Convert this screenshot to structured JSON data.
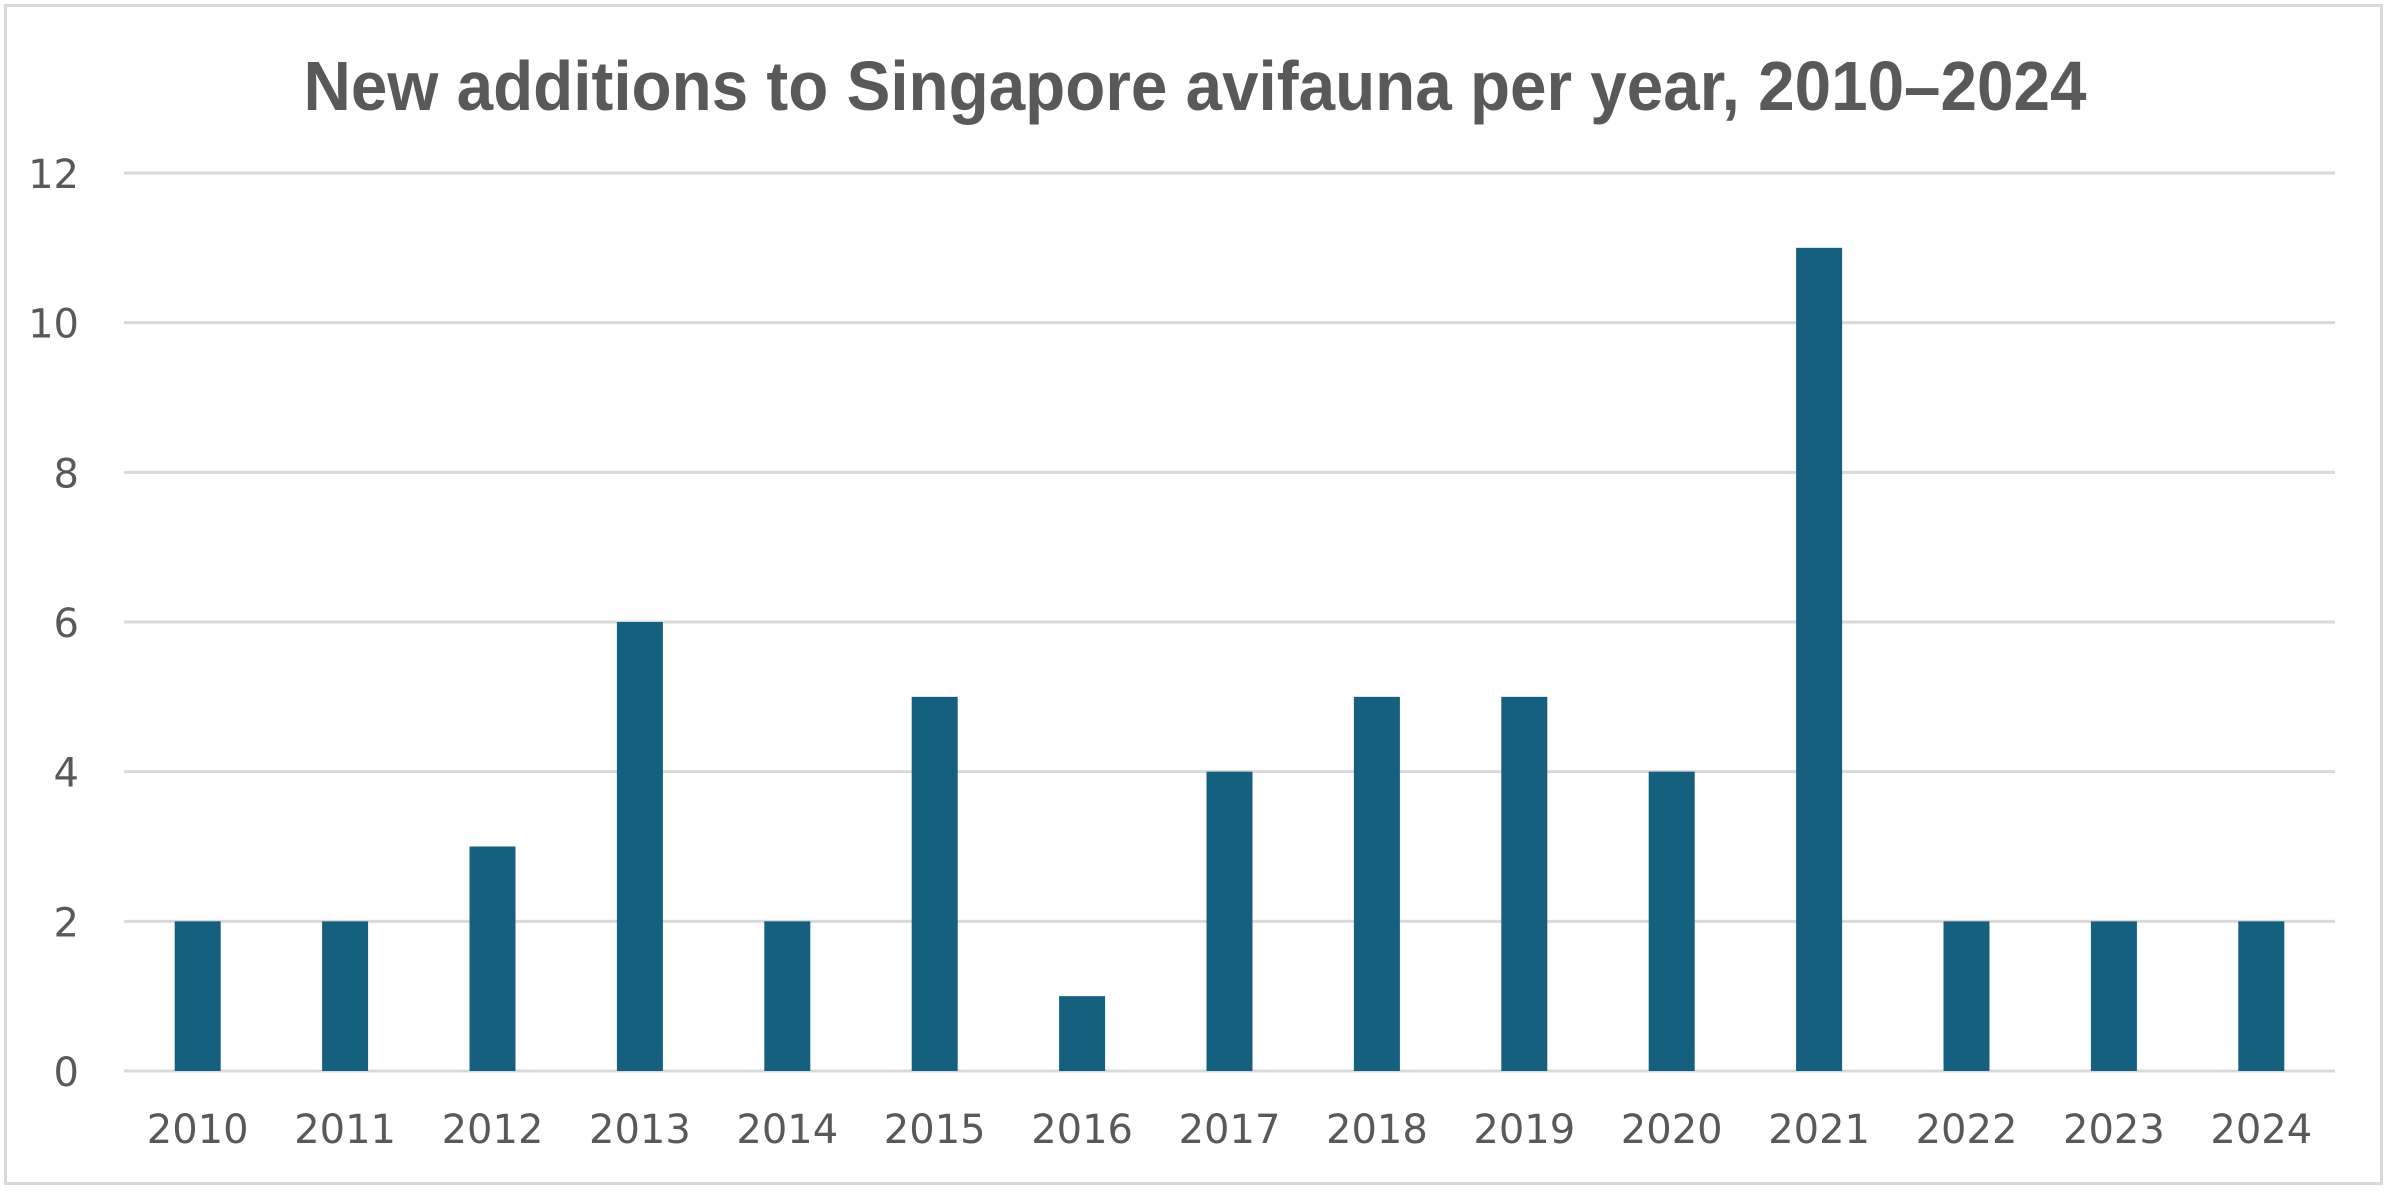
{
  "chart_data": {
    "type": "bar",
    "title": "New additions to Singapore avifauna per year, 2010–2024",
    "xlabel": "",
    "ylabel": "",
    "categories": [
      "2010",
      "2011",
      "2012",
      "2013",
      "2014",
      "2015",
      "2016",
      "2017",
      "2018",
      "2019",
      "2020",
      "2021",
      "2022",
      "2023",
      "2024"
    ],
    "values": [
      2,
      2,
      3,
      6,
      2,
      5,
      1,
      4,
      5,
      5,
      4,
      11,
      2,
      2,
      2
    ],
    "ylim": [
      0,
      12
    ],
    "yticks": [
      "0",
      "2",
      "4",
      "6",
      "8",
      "10",
      "12"
    ],
    "grid": true,
    "legend": "none",
    "colors": {
      "bar": "#16607f",
      "grid": "#d9d9d9",
      "text": "#595959",
      "border": "#d9d9d9"
    }
  }
}
